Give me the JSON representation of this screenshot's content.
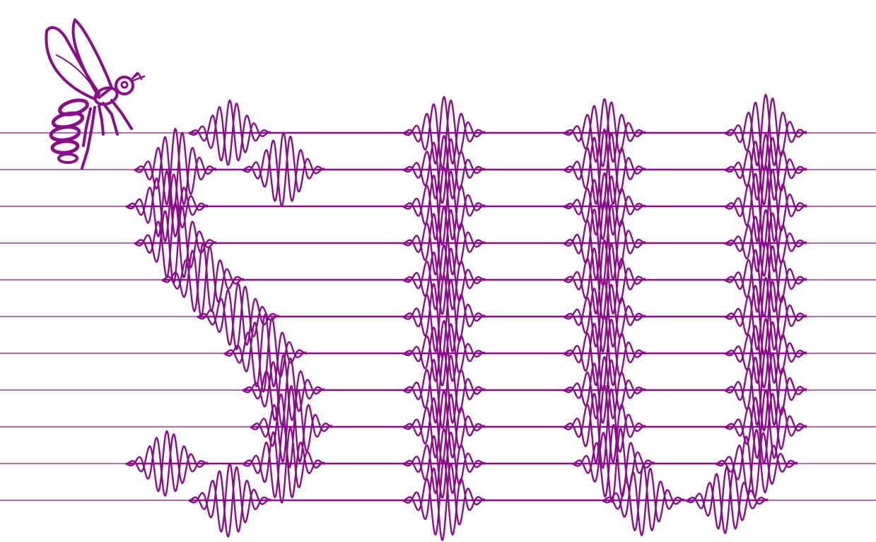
{
  "colors": {
    "accent": "#8b0d8b",
    "background": "#ffffff"
  },
  "icon": "mosquito-icon",
  "rows": [
    {
      "packets": [
        {
          "x": 325,
          "d": 46
        },
        {
          "x": 628,
          "d": 51
        },
        {
          "x": 855,
          "d": 48
        },
        {
          "x": 1083,
          "d": 54
        }
      ]
    },
    {
      "packets": [
        {
          "x": 248,
          "d": 58
        },
        {
          "x": 401,
          "d": 52
        },
        {
          "x": 628,
          "d": 48
        },
        {
          "x": 855,
          "d": 57
        },
        {
          "x": 1083,
          "d": 50
        }
      ]
    },
    {
      "packets": [
        {
          "x": 236,
          "d": 50
        },
        {
          "x": 628,
          "d": 55
        },
        {
          "x": 855,
          "d": 47
        },
        {
          "x": 1083,
          "d": 58
        }
      ]
    },
    {
      "packets": [
        {
          "x": 248,
          "d": 57
        },
        {
          "x": 628,
          "d": 52
        },
        {
          "x": 855,
          "d": 60
        },
        {
          "x": 1083,
          "d": 47
        }
      ]
    },
    {
      "packets": [
        {
          "x": 287,
          "d": 52
        },
        {
          "x": 628,
          "d": 49
        },
        {
          "x": 855,
          "d": 56
        },
        {
          "x": 1083,
          "d": 53
        }
      ]
    },
    {
      "packets": [
        {
          "x": 337,
          "d": 47
        },
        {
          "x": 628,
          "d": 58
        },
        {
          "x": 855,
          "d": 50
        },
        {
          "x": 1083,
          "d": 55
        }
      ]
    },
    {
      "packets": [
        {
          "x": 375,
          "d": 55
        },
        {
          "x": 628,
          "d": 46
        },
        {
          "x": 855,
          "d": 53
        },
        {
          "x": 1083,
          "d": 49
        }
      ]
    },
    {
      "packets": [
        {
          "x": 401,
          "d": 50
        },
        {
          "x": 628,
          "d": 54
        },
        {
          "x": 855,
          "d": 47
        },
        {
          "x": 1083,
          "d": 58
        }
      ]
    },
    {
      "packets": [
        {
          "x": 412,
          "d": 58
        },
        {
          "x": 628,
          "d": 51
        },
        {
          "x": 855,
          "d": 59
        },
        {
          "x": 1083,
          "d": 52
        }
      ]
    },
    {
      "packets": [
        {
          "x": 236,
          "d": 46
        },
        {
          "x": 401,
          "d": 56
        },
        {
          "x": 628,
          "d": 49
        },
        {
          "x": 868,
          "d": 55
        },
        {
          "x": 1070,
          "d": 48
        }
      ]
    },
    {
      "packets": [
        {
          "x": 325,
          "d": 52
        },
        {
          "x": 628,
          "d": 57
        },
        {
          "x": 910,
          "d": 50
        },
        {
          "x": 1028,
          "d": 47
        }
      ]
    }
  ]
}
